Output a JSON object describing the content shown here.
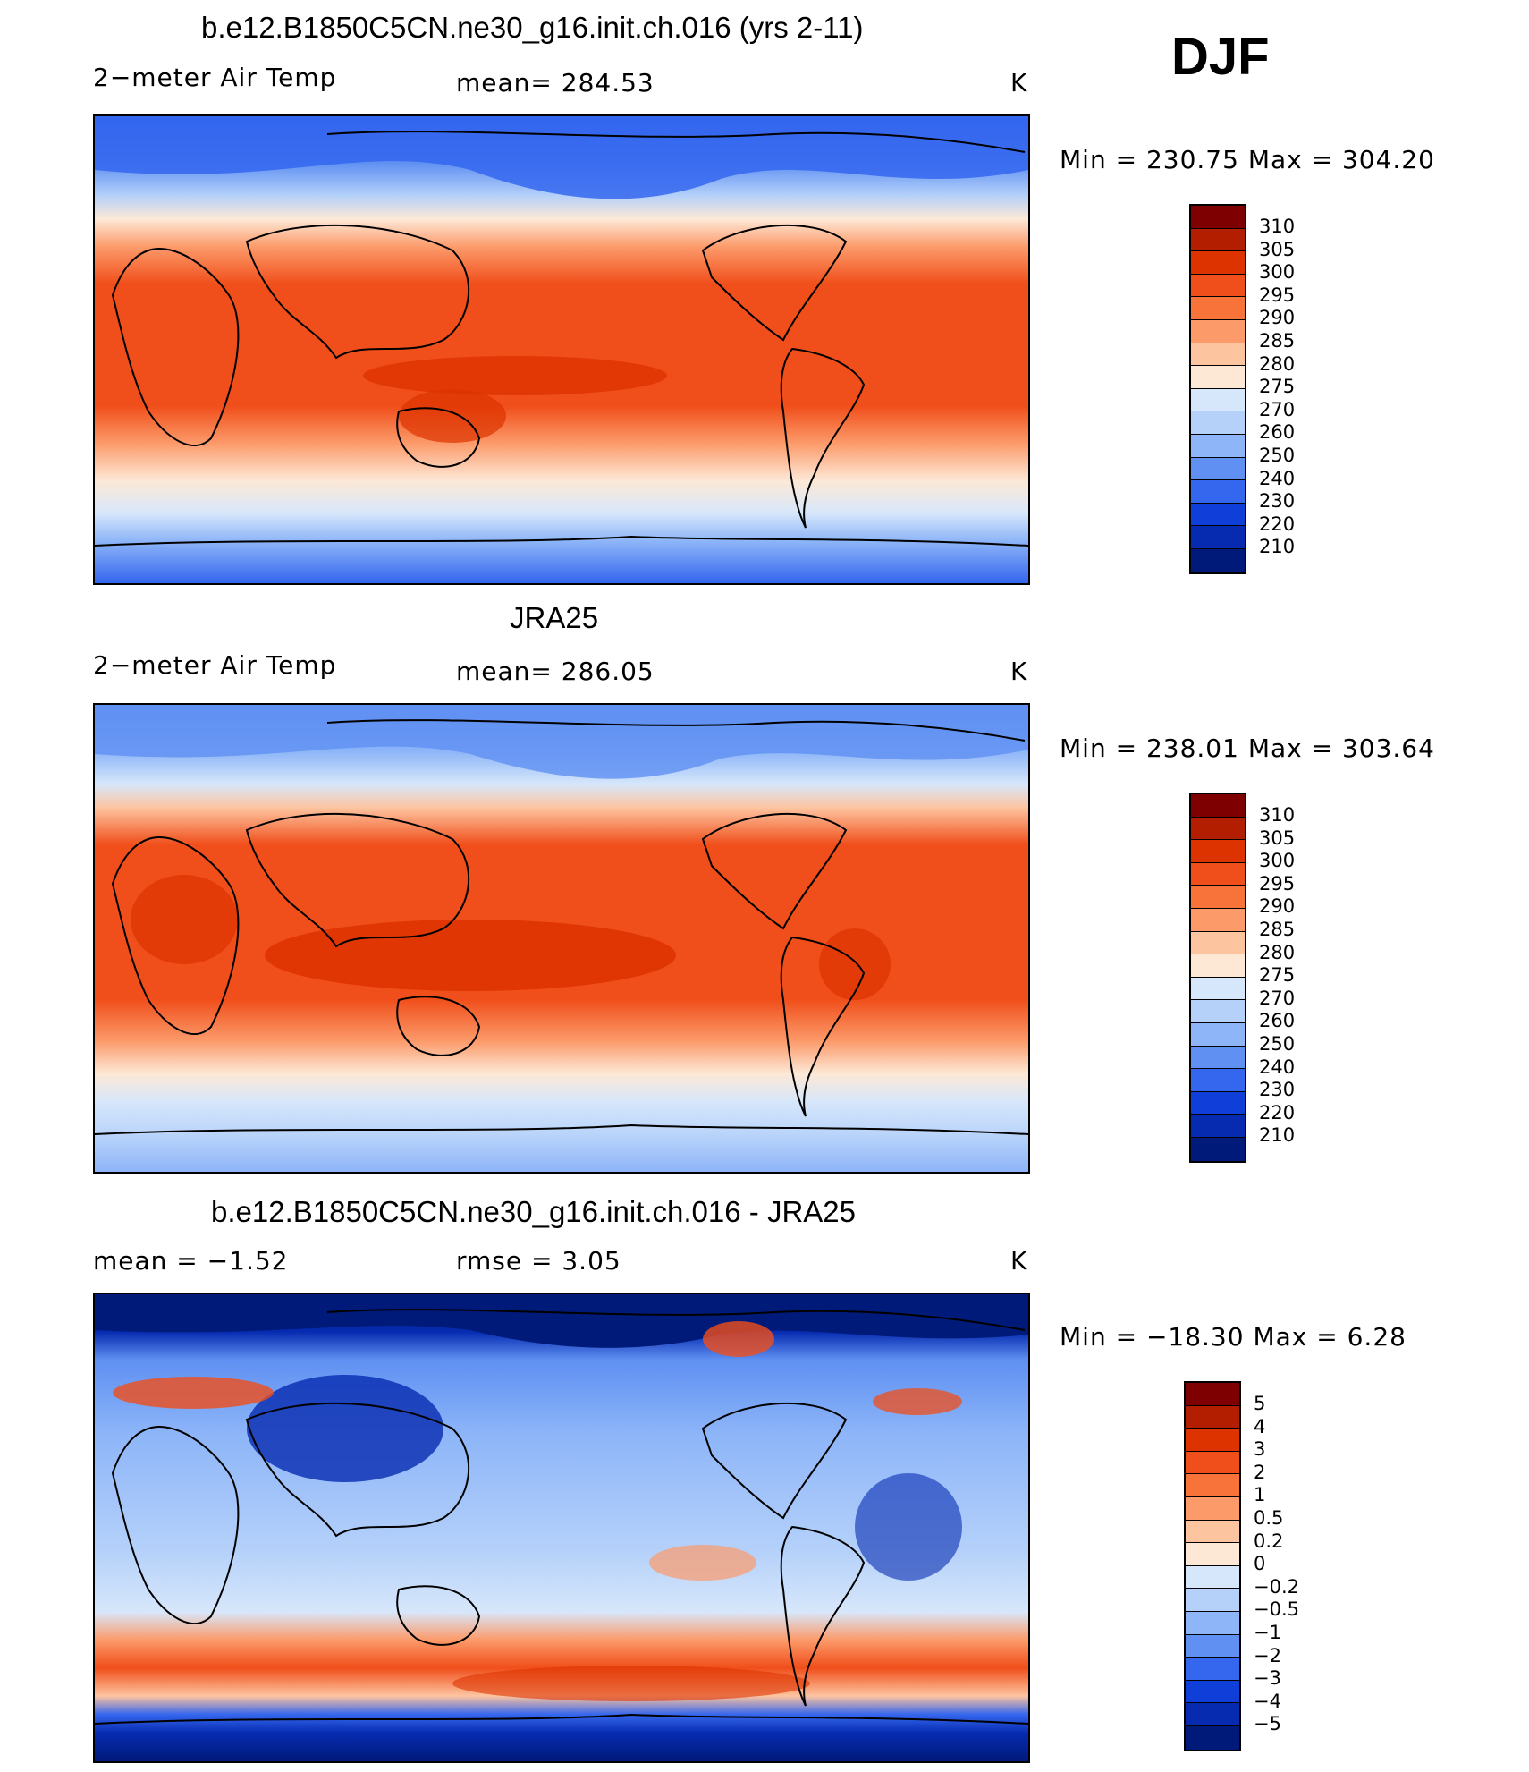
{
  "season": "DJF",
  "panels": [
    {
      "title": "b.e12.B1850C5CN.ne30_g16.init.ch.016 (yrs 2-11)",
      "left_label": "2−meter Air Temp",
      "center_label": "mean=  284.53",
      "unit": "K",
      "minmax": "Min  =  230.75  Max  =  304.20",
      "legend_labels": [
        "310",
        "305",
        "300",
        "295",
        "290",
        "285",
        "280",
        "275",
        "270",
        "260",
        "250",
        "240",
        "230",
        "220",
        "210"
      ]
    },
    {
      "title": "JRA25",
      "left_label": "2−meter Air Temp",
      "center_label": "mean=  286.05",
      "unit": "K",
      "minmax": "Min  =  238.01  Max  =  303.64",
      "legend_labels": [
        "310",
        "305",
        "300",
        "295",
        "290",
        "285",
        "280",
        "275",
        "270",
        "260",
        "250",
        "240",
        "230",
        "220",
        "210"
      ]
    },
    {
      "title": "b.e12.B1850C5CN.ne30_g16.init.ch.016 - JRA25",
      "left_label": "mean  =    −1.52",
      "center_label": "rmse  =      3.05",
      "unit": "K",
      "minmax": "Min  =  −18.30  Max  =     6.28",
      "legend_labels": [
        "5",
        "4",
        "3",
        "2",
        "1",
        "0.5",
        "0.2",
        "0",
        "−0.2",
        "−0.5",
        "−1",
        "−2",
        "−3",
        "−4",
        "−5"
      ]
    }
  ],
  "colors": {
    "temp_scale": [
      "#7f0000",
      "#b31e00",
      "#dd3300",
      "#f04e1a",
      "#f8733a",
      "#fc9a6a",
      "#fdc4a0",
      "#fde8d6",
      "#d7e7fb",
      "#b5d1fa",
      "#8db5f8",
      "#5f90f2",
      "#3466ee",
      "#0f3fd8",
      "#062bb0",
      "#001a7a"
    ],
    "diff_scale": [
      "#7f0000",
      "#b31e00",
      "#dd3300",
      "#f04e1a",
      "#f8733a",
      "#fc9a6a",
      "#fdc4a0",
      "#fde8d6",
      "#d7e7fb",
      "#b5d1fa",
      "#8db5f8",
      "#5f90f2",
      "#3466ee",
      "#0f3fd8",
      "#062bb0",
      "#001a7a"
    ]
  }
}
